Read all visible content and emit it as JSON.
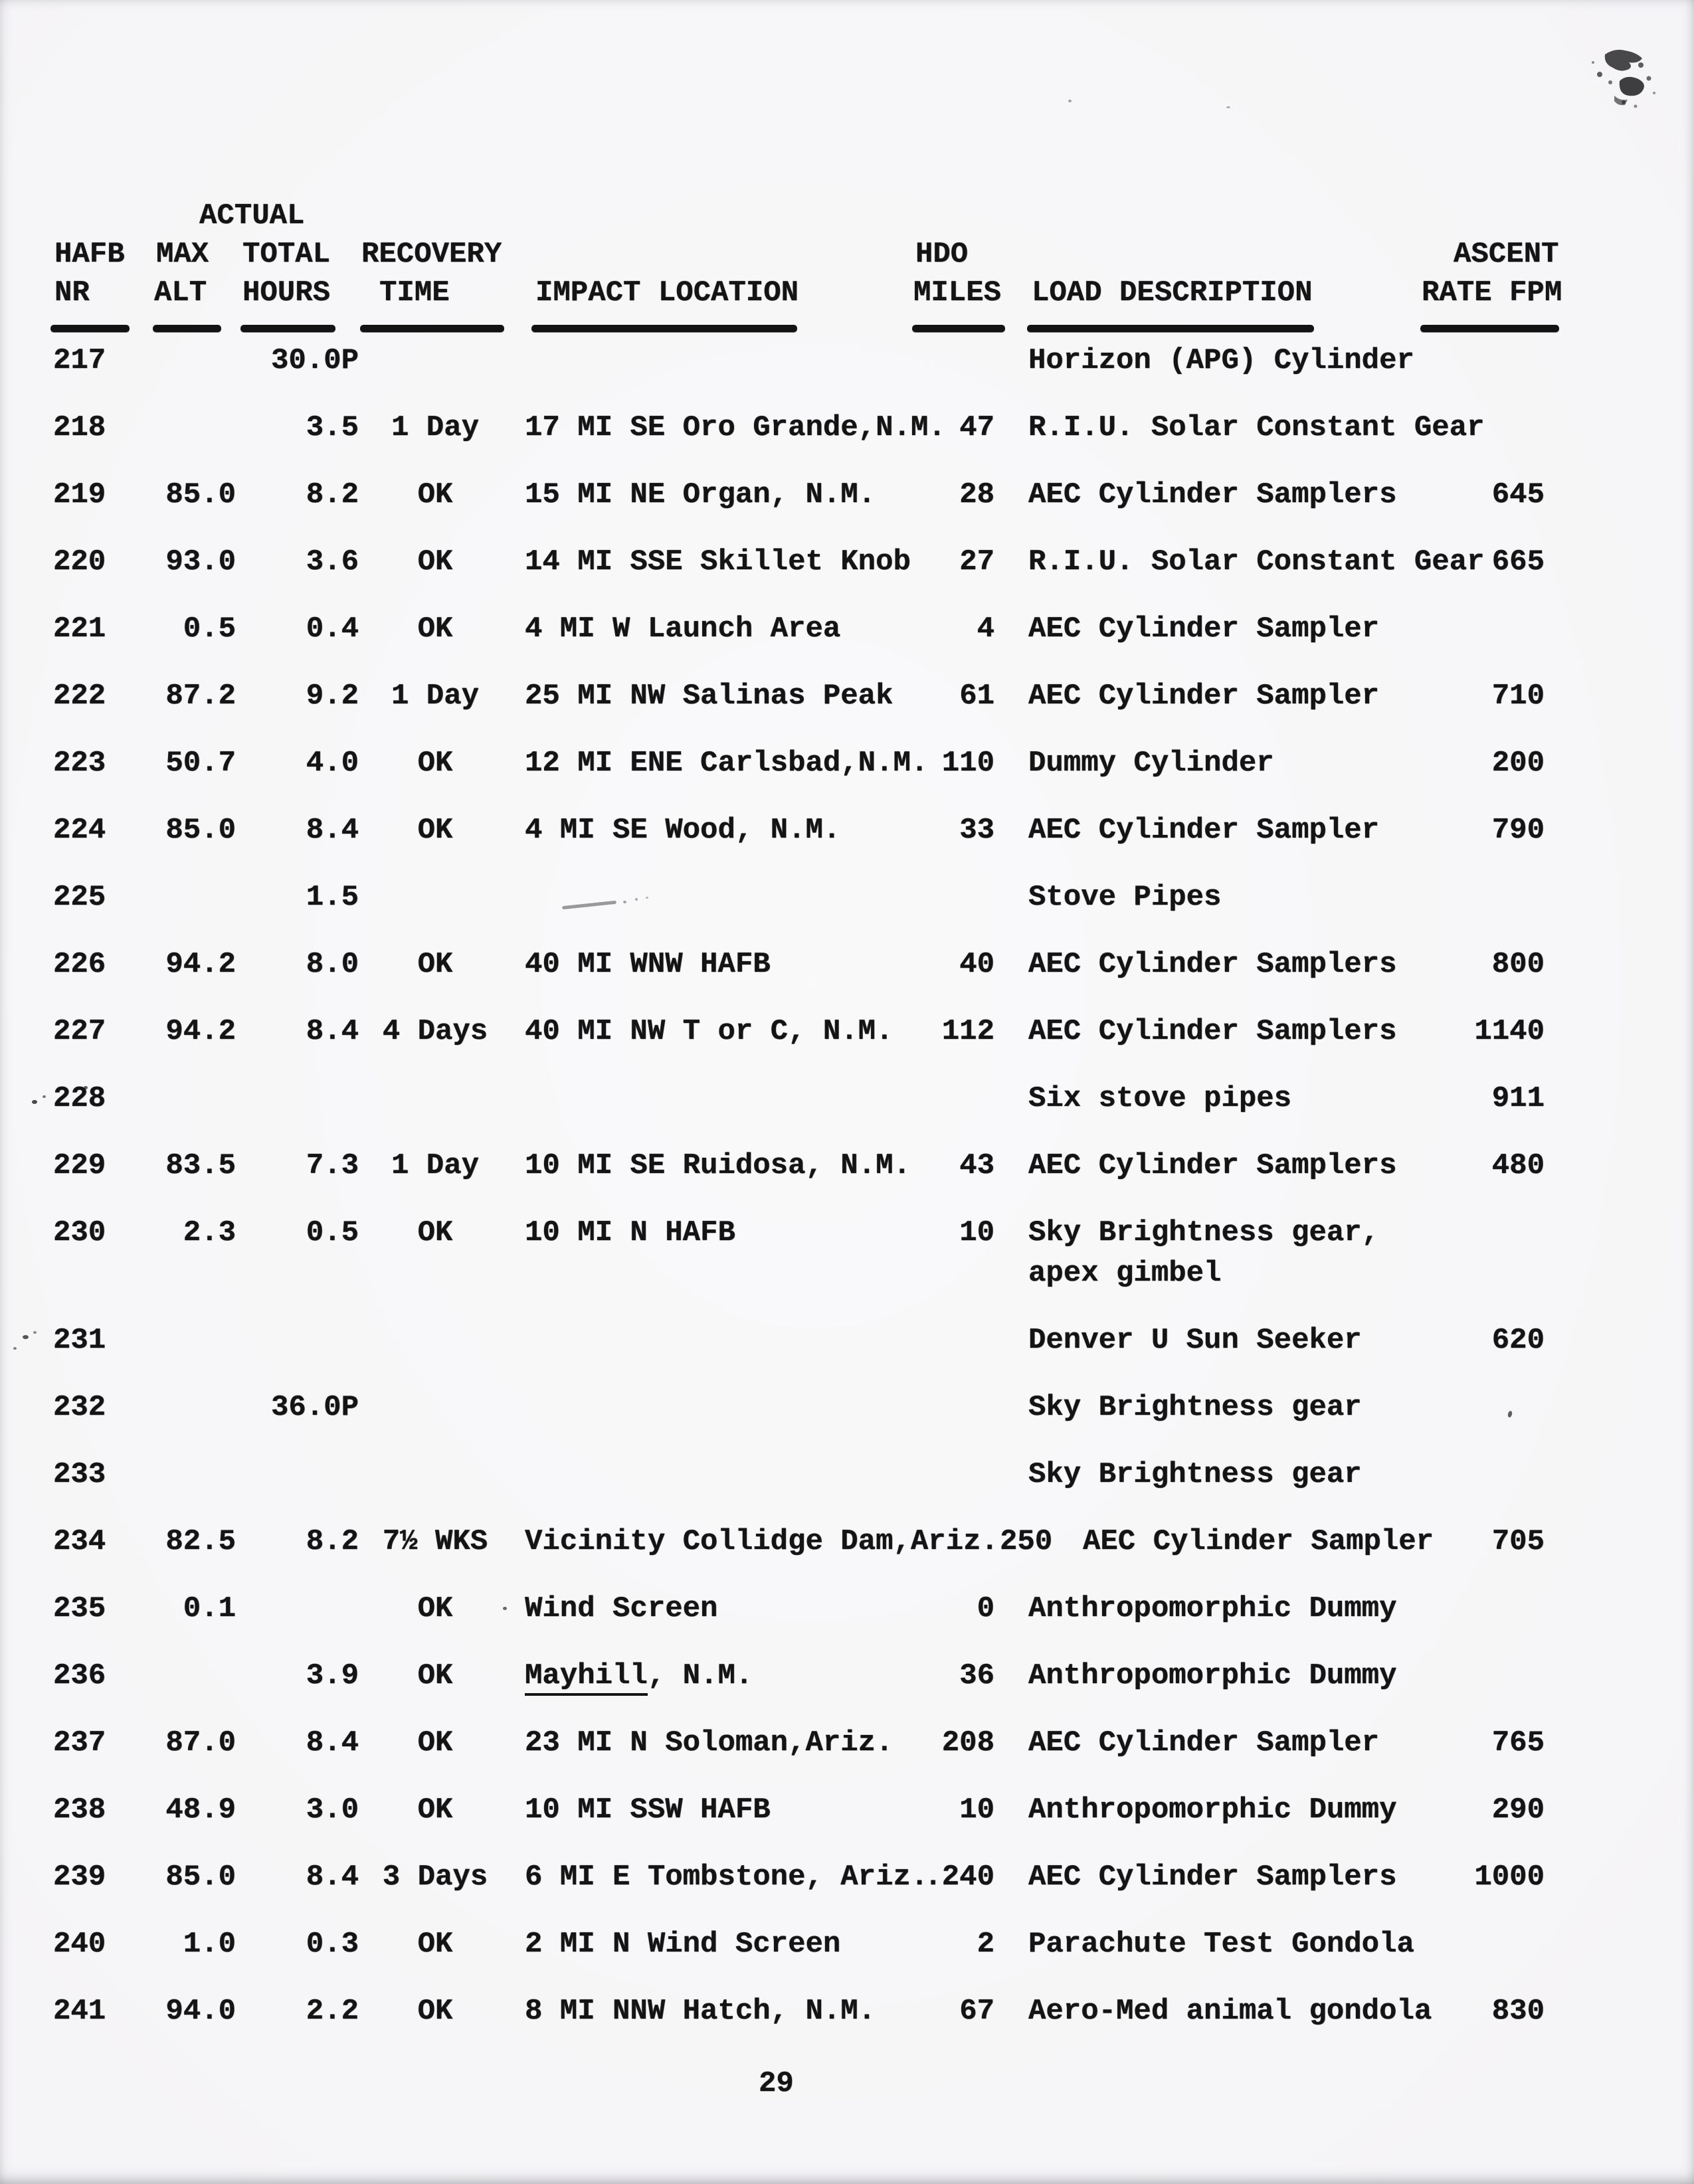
{
  "page": {
    "number": "29"
  },
  "header": {
    "group_label": "ACTUAL",
    "columns": [
      {
        "line1": "HAFB",
        "line2": "NR"
      },
      {
        "line1": "MAX",
        "line2": "ALT"
      },
      {
        "line1": "TOTAL",
        "line2": "HOURS"
      },
      {
        "line1": "RECOVERY",
        "line2": "TIME"
      },
      {
        "line1": "",
        "line2": "IMPACT LOCATION"
      },
      {
        "line1": "HDO",
        "line2": "MILES"
      },
      {
        "line1": "",
        "line2": "LOAD DESCRIPTION"
      },
      {
        "line1": "ASCENT",
        "line2": "RATE FPM"
      }
    ]
  },
  "artifacts": [
    "ink-smudge-top-right",
    "pencil-marks",
    "paper-specks"
  ],
  "rows": [
    {
      "nr": "217",
      "max_alt": "",
      "total_hours": "30.0P",
      "recovery": "",
      "impact": "",
      "miles": "",
      "load": "Horizon (APG) Cylinder",
      "ascent": ""
    },
    {
      "nr": "218",
      "max_alt": "",
      "total_hours": "3.5",
      "recovery": "1 Day",
      "impact": "17 MI SE Oro Grande,N.M.",
      "miles": "47",
      "load": "R.I.U. Solar Constant Gear",
      "ascent": ""
    },
    {
      "nr": "219",
      "max_alt": "85.0",
      "total_hours": "8.2",
      "recovery": "OK",
      "impact": "15 MI NE Organ, N.M.",
      "miles": "28",
      "load": "AEC Cylinder Samplers",
      "ascent": "645"
    },
    {
      "nr": "220",
      "max_alt": "93.0",
      "total_hours": "3.6",
      "recovery": "OK",
      "impact": "14 MI SSE Skillet Knob",
      "miles": "27",
      "load": "R.I.U. Solar Constant Gear",
      "ascent": "665"
    },
    {
      "nr": "221",
      "max_alt": "0.5",
      "total_hours": "0.4",
      "recovery": "OK",
      "impact": "4 MI W Launch Area",
      "miles": "4",
      "load": "AEC Cylinder Sampler",
      "ascent": ""
    },
    {
      "nr": "222",
      "max_alt": "87.2",
      "total_hours": "9.2",
      "recovery": "1 Day",
      "impact": "25 MI NW Salinas Peak",
      "miles": "61",
      "load": "AEC Cylinder Sampler",
      "ascent": "710"
    },
    {
      "nr": "223",
      "max_alt": "50.7",
      "total_hours": "4.0",
      "recovery": "OK",
      "impact": "12 MI ENE Carlsbad,N.M.",
      "miles": "110",
      "load": "Dummy Cylinder",
      "ascent": "200"
    },
    {
      "nr": "224",
      "max_alt": "85.0",
      "total_hours": "8.4",
      "recovery": "OK",
      "impact": "4 MI SE Wood, N.M.",
      "miles": "33",
      "load": "AEC Cylinder Sampler",
      "ascent": "790"
    },
    {
      "nr": "225",
      "max_alt": "",
      "total_hours": "1.5",
      "recovery": "",
      "impact": "",
      "miles": "",
      "load": "Stove Pipes",
      "ascent": ""
    },
    {
      "nr": "226",
      "max_alt": "94.2",
      "total_hours": "8.0",
      "recovery": "OK",
      "impact": "40 MI WNW HAFB",
      "miles": "40",
      "load": "AEC Cylinder Samplers",
      "ascent": "800"
    },
    {
      "nr": "227",
      "max_alt": "94.2",
      "total_hours": "8.4",
      "recovery": "4 Days",
      "impact": "40 MI NW T or C, N.M.",
      "miles": "112",
      "load": "AEC Cylinder Samplers",
      "ascent": "1140"
    },
    {
      "nr": "228",
      "max_alt": "",
      "total_hours": "",
      "recovery": "",
      "impact": "",
      "miles": "",
      "load": "Six stove pipes",
      "ascent": "911"
    },
    {
      "nr": "229",
      "max_alt": "83.5",
      "total_hours": "7.3",
      "recovery": "1 Day",
      "impact": "10 MI SE Ruidosa, N.M.",
      "miles": "43",
      "load": "AEC Cylinder Samplers",
      "ascent": "480"
    },
    {
      "nr": "230",
      "max_alt": "2.3",
      "total_hours": "0.5",
      "recovery": "OK",
      "impact": "10 MI N HAFB",
      "miles": "10",
      "load": "Sky Brightness gear,",
      "load2": "apex gimbel",
      "ascent": ""
    },
    {
      "nr": "231",
      "max_alt": "",
      "total_hours": "",
      "recovery": "",
      "impact": "",
      "miles": "",
      "load": "Denver U Sun Seeker",
      "ascent": "620"
    },
    {
      "nr": "232",
      "max_alt": "",
      "total_hours": "36.0P",
      "recovery": "",
      "impact": "",
      "miles": "",
      "load": "Sky Brightness gear",
      "ascent": ""
    },
    {
      "nr": "233",
      "max_alt": "",
      "total_hours": "",
      "recovery": "",
      "impact": "",
      "miles": "",
      "load": "Sky Brightness gear",
      "ascent": ""
    },
    {
      "nr": "234",
      "max_alt": "82.5",
      "total_hours": "8.2",
      "recovery": "7½ WKS",
      "impact": "Vicinity Collidge Dam,Ariz.",
      "miles": "250",
      "load": "AEC Cylinder Sampler",
      "ascent": "705"
    },
    {
      "nr": "235",
      "max_alt": "0.1",
      "total_hours": "",
      "recovery": "OK",
      "impact": "Wind Screen",
      "miles": "0",
      "load": "Anthropomorphic Dummy",
      "ascent": ""
    },
    {
      "nr": "236",
      "max_alt": "",
      "total_hours": "3.9",
      "recovery": "OK",
      "impact": "Mayhill, N.M.",
      "impact_underline": "Mayhill",
      "miles": "36",
      "load": "Anthropomorphic Dummy",
      "ascent": ""
    },
    {
      "nr": "237",
      "max_alt": "87.0",
      "total_hours": "8.4",
      "recovery": "OK",
      "impact": "23 MI N Soloman,Ariz.",
      "miles": "208",
      "load": "AEC Cylinder Sampler",
      "ascent": "765"
    },
    {
      "nr": "238",
      "max_alt": "48.9",
      "total_hours": "3.0",
      "recovery": "OK",
      "impact": "10 MI SSW HAFB",
      "miles": "10",
      "load": "Anthropomorphic Dummy",
      "ascent": "290"
    },
    {
      "nr": "239",
      "max_alt": "85.0",
      "total_hours": "8.4",
      "recovery": "3 Days",
      "impact": "6 MI E Tombstone, Ariz.",
      "miles": ".240",
      "load": "AEC Cylinder Samplers",
      "ascent": "1000"
    },
    {
      "nr": "240",
      "max_alt": "1.0",
      "total_hours": "0.3",
      "recovery": "OK",
      "impact": "2 MI N Wind Screen",
      "miles": "2",
      "load": "Parachute Test Gondola",
      "ascent": ""
    },
    {
      "nr": "241",
      "max_alt": "94.0",
      "total_hours": "2.2",
      "recovery": "OK",
      "impact": "8 MI NNW Hatch, N.M.",
      "miles": "67",
      "load": "Aero-Med animal gondola",
      "ascent": "830"
    }
  ]
}
